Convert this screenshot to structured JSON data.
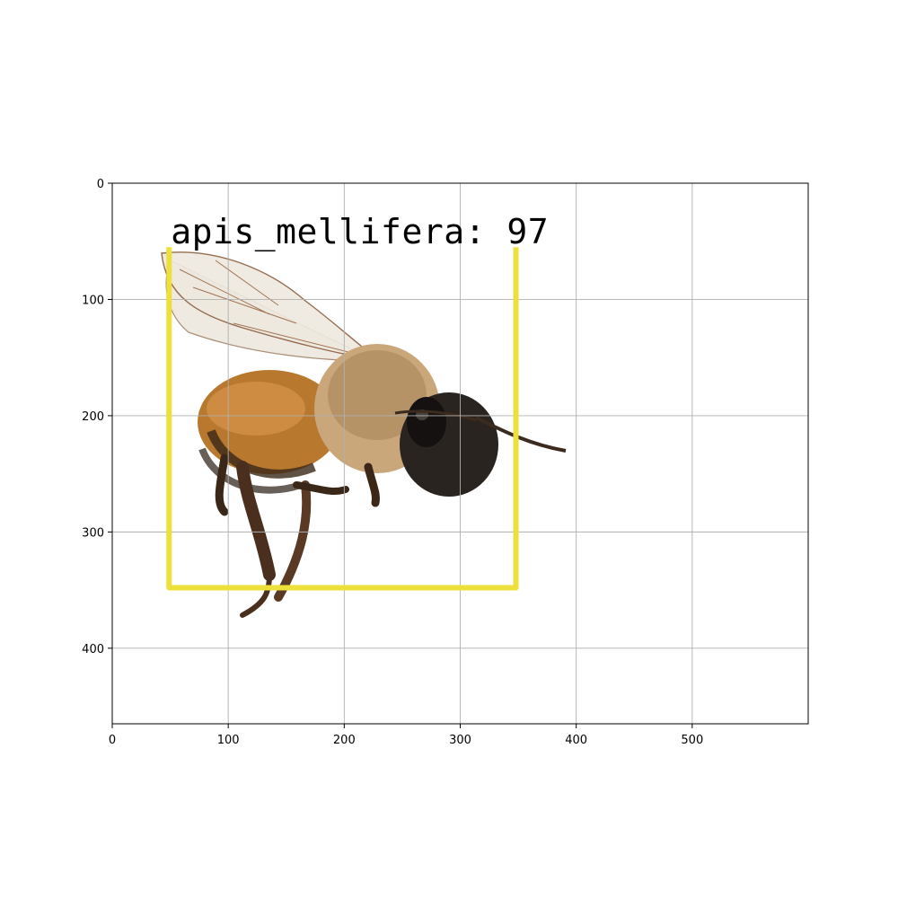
{
  "chart_data": {
    "type": "image",
    "xlim": [
      0,
      600
    ],
    "ylim": [
      465,
      0
    ],
    "x_ticks": [
      0,
      100,
      200,
      300,
      400,
      500
    ],
    "y_ticks": [
      0,
      100,
      200,
      300,
      400
    ],
    "grid": true,
    "detections": [
      {
        "label": "apis_mellifera: 97",
        "class": "apis_mellifera",
        "score": 97,
        "box": {
          "x_min": 49,
          "y_min": 55,
          "x_max": 348,
          "y_max": 348
        },
        "color": "#ede03a"
      }
    ]
  },
  "colors": {
    "bee_abdomen": "#b8782e",
    "bee_thorax": "#c9a77a",
    "bee_head": "#1f1b18",
    "leg": "#5a3a24",
    "wing": "#ece6dc",
    "grid": "#b0b0b0",
    "box": "#ede03a"
  },
  "icons": {
    "subject": "honeybee-image"
  }
}
